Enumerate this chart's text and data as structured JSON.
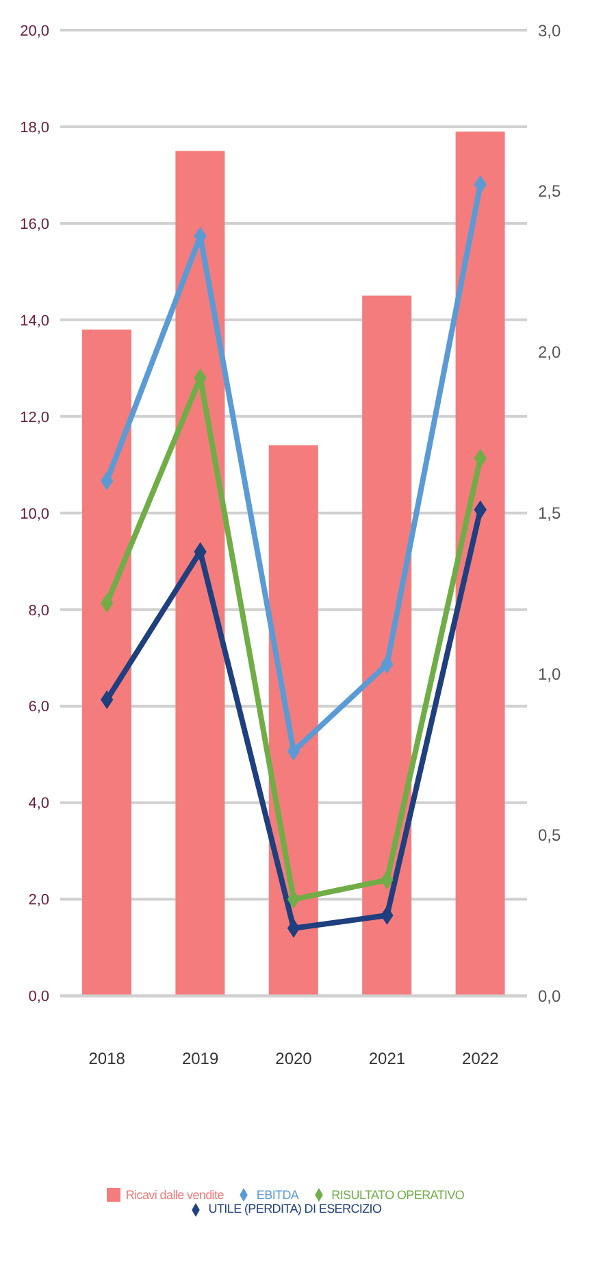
{
  "chart_data": {
    "type": "bar",
    "categories": [
      "2018",
      "2019",
      "2020",
      "2021",
      "2022"
    ],
    "series": [
      {
        "name": "Ricavi dalle vendite",
        "color": "#f47c7c",
        "values": [
          13.8,
          17.5,
          11.4,
          14.5,
          17.9
        ]
      },
      {
        "name": "EBITDA",
        "type": "line",
        "axis": "y2",
        "color": "#5b9bd5",
        "values": [
          1.6,
          2.36,
          0.76,
          1.03,
          2.52
        ]
      },
      {
        "name": "RISULTATO OPERATIVO",
        "type": "line",
        "axis": "y2",
        "color": "#70ad47",
        "values": [
          1.22,
          1.92,
          0.3,
          0.36,
          1.67
        ]
      },
      {
        "name": "UTILE (PERDITA) DI ESERCIZIO",
        "type": "line",
        "axis": "y2",
        "color": "#1f3f7f",
        "values": [
          0.92,
          1.38,
          0.21,
          0.25,
          1.51
        ]
      }
    ],
    "ylim": [
      0,
      20
    ],
    "yticks": [
      {
        "value": 0,
        "label": "0,0"
      },
      {
        "value": 2,
        "label": "2,0"
      },
      {
        "value": 4,
        "label": "4,0"
      },
      {
        "value": 6,
        "label": "6,0"
      },
      {
        "value": 8,
        "label": "8,0"
      },
      {
        "value": 10,
        "label": "10,0"
      },
      {
        "value": 12,
        "label": "12,0"
      },
      {
        "value": 14,
        "label": "14,0"
      },
      {
        "value": 16,
        "label": "16,0"
      },
      {
        "value": 18,
        "label": "18,0"
      },
      {
        "value": 20,
        "label": "20,0"
      }
    ],
    "y2lim": [
      0,
      3
    ],
    "y2ticks": [
      {
        "value": 0,
        "label": "0,0"
      },
      {
        "value": 0.5,
        "label": "0,5"
      },
      {
        "value": 1,
        "label": "1,0"
      },
      {
        "value": 1.5,
        "label": "1,5"
      },
      {
        "value": 2,
        "label": "2,0"
      },
      {
        "value": 2.5,
        "label": "2,5"
      },
      {
        "value": 3,
        "label": "3,0"
      }
    ],
    "grid": "y",
    "legend": "bottom",
    "marker": "diamond",
    "line_style": "solid"
  }
}
